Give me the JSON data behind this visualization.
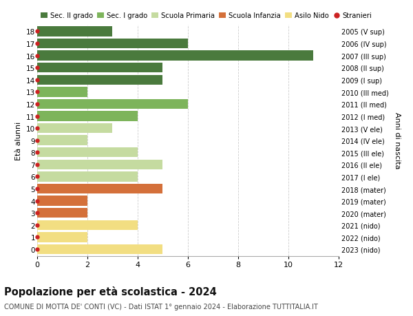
{
  "ages": [
    18,
    17,
    16,
    15,
    14,
    13,
    12,
    11,
    10,
    9,
    8,
    7,
    6,
    5,
    4,
    3,
    2,
    1,
    0
  ],
  "right_labels": [
    "2005 (V sup)",
    "2006 (IV sup)",
    "2007 (III sup)",
    "2008 (II sup)",
    "2009 (I sup)",
    "2010 (III med)",
    "2011 (II med)",
    "2012 (I med)",
    "2013 (V ele)",
    "2014 (IV ele)",
    "2015 (III ele)",
    "2016 (II ele)",
    "2017 (I ele)",
    "2018 (mater)",
    "2019 (mater)",
    "2020 (mater)",
    "2021 (nido)",
    "2022 (nido)",
    "2023 (nido)"
  ],
  "values": [
    3,
    6,
    11,
    5,
    5,
    2,
    6,
    4,
    3,
    2,
    4,
    5,
    4,
    5,
    2,
    2,
    4,
    2,
    5
  ],
  "colors": [
    "#4a7a3d",
    "#4a7a3d",
    "#4a7a3d",
    "#4a7a3d",
    "#4a7a3d",
    "#7db45b",
    "#7db45b",
    "#7db45b",
    "#c5dba0",
    "#c5dba0",
    "#c5dba0",
    "#c5dba0",
    "#c5dba0",
    "#d4703a",
    "#d4703a",
    "#d4703a",
    "#f2de82",
    "#f2de82",
    "#f2de82"
  ],
  "stranieri_dots": [
    18,
    17,
    16,
    15,
    14,
    13,
    12,
    11,
    10,
    9,
    8,
    7,
    6,
    5,
    4,
    3,
    2,
    1,
    0
  ],
  "legend_labels": [
    "Sec. II grado",
    "Sec. I grado",
    "Scuola Primaria",
    "Scuola Infanzia",
    "Asilo Nido",
    "Stranieri"
  ],
  "legend_colors": [
    "#4a7a3d",
    "#7db45b",
    "#c5dba0",
    "#d4703a",
    "#f2de82",
    "#cc2222"
  ],
  "left_ylabel": "Età alunni",
  "right_ylabel": "Anni di nascita",
  "title": "Popolazione per età scolastica - 2024",
  "subtitle": "COMUNE DI MOTTA DE' CONTI (VC) - Dati ISTAT 1° gennaio 2024 - Elaborazione TUTTITALIA.IT",
  "xlim": [
    0,
    12
  ],
  "bg_color": "#ffffff",
  "grid_color": "#cccccc",
  "bar_height": 0.82
}
